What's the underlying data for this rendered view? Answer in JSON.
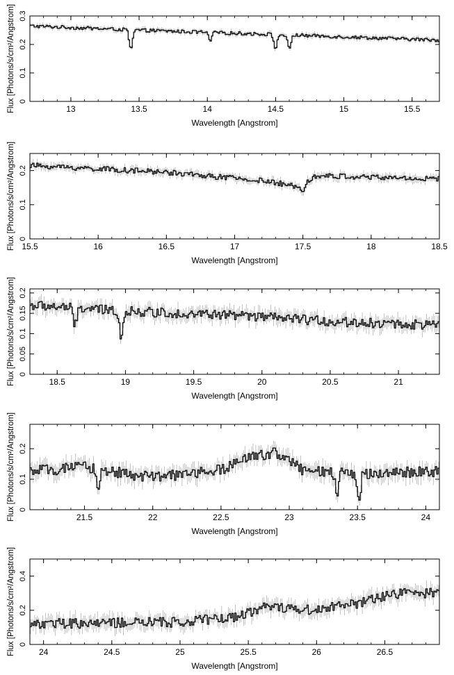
{
  "chart_data": [
    {
      "type": "line",
      "xlabel": "Wavelength [Angstrom]",
      "ylabel": "Flux [Photons/s/cm²/Angstrom]",
      "xlim": [
        12.7,
        15.7
      ],
      "ylim": [
        0,
        0.3
      ],
      "xticks": [
        13,
        13.5,
        14,
        14.5,
        15,
        15.5
      ],
      "xtick_labels": [
        "13",
        "13.5",
        "14",
        "14.5",
        "15",
        "15.5"
      ],
      "yticks": [
        0,
        0.1,
        0.2,
        0.3
      ],
      "ytick_labels": [
        "0",
        "0.1",
        "0.2",
        "0.3"
      ],
      "continuum": [
        [
          12.7,
          0.265
        ],
        [
          13.5,
          0.25
        ],
        [
          14.5,
          0.235
        ],
        [
          15.7,
          0.215
        ]
      ],
      "absorption_lines": [
        {
          "x": 13.44,
          "depth": 0.07
        },
        {
          "x": 14.02,
          "depth": 0.03
        },
        {
          "x": 14.5,
          "depth": 0.05
        },
        {
          "x": 14.6,
          "depth": 0.05
        }
      ],
      "noise": 0.006
    },
    {
      "type": "line",
      "xlabel": "Wavelength [Angstrom]",
      "ylabel": "Flux [Photons/s/cm²/Angstrom]",
      "xlim": [
        15.5,
        18.5
      ],
      "ylim": [
        0,
        0.25
      ],
      "xticks": [
        15.5,
        16,
        16.5,
        17,
        17.5,
        18,
        18.5
      ],
      "xtick_labels": [
        "15.5",
        "16",
        "16.5",
        "17",
        "17.5",
        "18",
        "18.5"
      ],
      "yticks": [
        0,
        0.1,
        0.2
      ],
      "ytick_labels": [
        "0",
        "0.1",
        "0.2"
      ],
      "continuum": [
        [
          15.5,
          0.215
        ],
        [
          16.5,
          0.195
        ],
        [
          17.2,
          0.17
        ],
        [
          17.45,
          0.155
        ],
        [
          17.6,
          0.185
        ],
        [
          18.5,
          0.175
        ]
      ],
      "absorption_lines": [
        {
          "x": 17.5,
          "depth": 0.025
        },
        {
          "x": 17.38,
          "depth": 0.01
        }
      ],
      "noise": 0.008
    },
    {
      "type": "line",
      "xlabel": "Wavelength [Angstrom]",
      "ylabel": "Flux [Photons/s/cm²/Angstrom]",
      "xlim": [
        18.3,
        21.3
      ],
      "ylim": [
        0,
        0.21
      ],
      "xticks": [
        18.5,
        19,
        19.5,
        20,
        20.5,
        21
      ],
      "xtick_labels": [
        "18.5",
        "19",
        "19.5",
        "20",
        "20.5",
        "21"
      ],
      "yticks": [
        0,
        0.05,
        0.1,
        0.15,
        0.2
      ],
      "ytick_labels": [
        "0",
        "0.05",
        "0.1",
        "0.15",
        "0.2"
      ],
      "continuum": [
        [
          18.3,
          0.17
        ],
        [
          19.0,
          0.155
        ],
        [
          19.8,
          0.145
        ],
        [
          20.5,
          0.13
        ],
        [
          21.3,
          0.12
        ]
      ],
      "absorption_lines": [
        {
          "x": 18.63,
          "depth": 0.045
        },
        {
          "x": 18.97,
          "depth": 0.065
        }
      ],
      "noise": 0.012
    },
    {
      "type": "line",
      "xlabel": "Wavelength [Angstrom]",
      "ylabel": "Flux [Photons/s/cm²/Angstrom]",
      "xlim": [
        21.1,
        24.1
      ],
      "ylim": [
        0,
        0.28
      ],
      "xticks": [
        21.5,
        22,
        22.5,
        23,
        23.5,
        24
      ],
      "xtick_labels": [
        "21.5",
        "22",
        "22.5",
        "23",
        "23.5",
        "24"
      ],
      "yticks": [
        0,
        0.1,
        0.2
      ],
      "ytick_labels": [
        "0",
        "0.1",
        "0.2"
      ],
      "continuum": [
        [
          21.1,
          0.125
        ],
        [
          21.5,
          0.14
        ],
        [
          22.0,
          0.105
        ],
        [
          22.5,
          0.13
        ],
        [
          22.7,
          0.17
        ],
        [
          22.9,
          0.19
        ],
        [
          23.1,
          0.13
        ],
        [
          23.3,
          0.12
        ],
        [
          23.6,
          0.12
        ],
        [
          24.1,
          0.125
        ]
      ],
      "absorption_lines": [
        {
          "x": 21.6,
          "depth": 0.06
        },
        {
          "x": 23.35,
          "depth": 0.07
        },
        {
          "x": 23.51,
          "depth": 0.1
        }
      ],
      "noise": 0.018
    },
    {
      "type": "line",
      "xlabel": "Wavelength [Angstrom]",
      "ylabel": "Flux [Photons/s/cm²/Angstrom]",
      "xlim": [
        23.9,
        26.9
      ],
      "ylim": [
        0,
        0.5
      ],
      "xticks": [
        24,
        24.5,
        25,
        25.5,
        26,
        26.5
      ],
      "xtick_labels": [
        "24",
        "24.5",
        "25",
        "25.5",
        "26",
        "26.5"
      ],
      "yticks": [
        0,
        0.2,
        0.4
      ],
      "ytick_labels": [
        "0",
        "0.2",
        "0.4"
      ],
      "continuum": [
        [
          23.9,
          0.12
        ],
        [
          25.0,
          0.13
        ],
        [
          25.4,
          0.16
        ],
        [
          25.65,
          0.23
        ],
        [
          25.9,
          0.2
        ],
        [
          26.3,
          0.24
        ],
        [
          26.6,
          0.3
        ],
        [
          26.9,
          0.3
        ]
      ],
      "absorption_lines": [],
      "noise": 0.03
    }
  ]
}
